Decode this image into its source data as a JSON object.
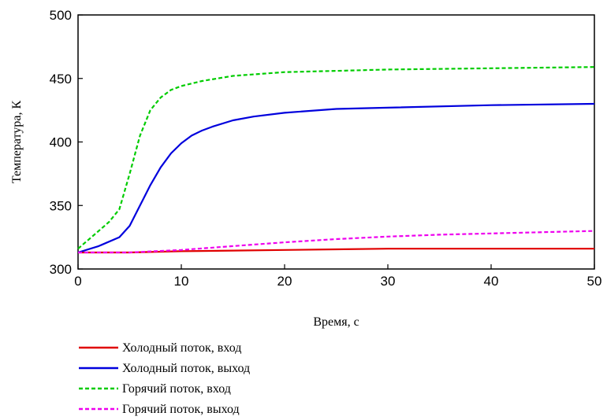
{
  "chart_data": {
    "type": "line",
    "xlabel": "Время, с",
    "ylabel": "Температура, К",
    "xlim": [
      0,
      50
    ],
    "ylim": [
      300,
      500
    ],
    "xticks": [
      0,
      10,
      20,
      30,
      40,
      50
    ],
    "yticks": [
      300,
      350,
      400,
      450,
      500
    ],
    "grid": false,
    "legend_position": "bottom",
    "series": [
      {
        "name": "Холодный поток, вход",
        "color": "#e00000",
        "style": "solid",
        "x": [
          0,
          5,
          10,
          15,
          20,
          25,
          30,
          35,
          40,
          45,
          50
        ],
        "y": [
          313,
          313,
          314,
          314.5,
          315,
          315.5,
          316,
          316,
          316,
          316,
          316
        ]
      },
      {
        "name": "Холодный поток, выход",
        "color": "#0000dd",
        "style": "solid",
        "x": [
          0,
          2,
          4,
          5,
          6,
          7,
          8,
          9,
          10,
          11,
          12,
          13,
          15,
          17,
          20,
          25,
          30,
          40,
          50
        ],
        "y": [
          313,
          318,
          325,
          334,
          350,
          366,
          380,
          391,
          399,
          405,
          409,
          412,
          417,
          420,
          423,
          426,
          427,
          429,
          430
        ]
      },
      {
        "name": "Горячий поток, вход",
        "color": "#00cc00",
        "style": "dashed",
        "x": [
          0,
          1,
          2,
          3,
          4,
          5,
          6,
          7,
          8,
          9,
          10,
          12,
          15,
          20,
          25,
          30,
          40,
          50
        ],
        "y": [
          316,
          323,
          330,
          337,
          347,
          375,
          405,
          425,
          435,
          441,
          444,
          448,
          452,
          455,
          456,
          457,
          458,
          459
        ]
      },
      {
        "name": "Горячий поток, выход",
        "color": "#ee00ee",
        "style": "dashed",
        "x": [
          0,
          5,
          10,
          15,
          20,
          25,
          30,
          35,
          40,
          45,
          50
        ],
        "y": [
          313,
          313,
          315,
          318,
          321,
          323.5,
          325.5,
          327,
          328,
          329,
          330
        ]
      }
    ]
  }
}
